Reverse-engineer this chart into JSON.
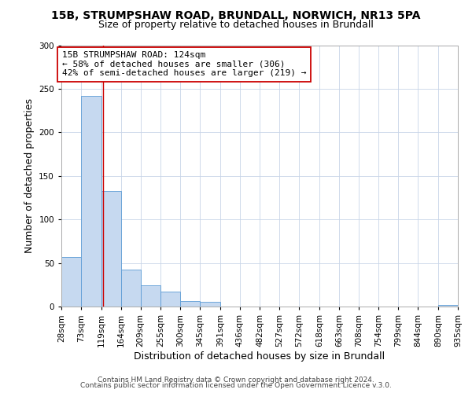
{
  "title_line1": "15B, STRUMPSHAW ROAD, BRUNDALL, NORWICH, NR13 5PA",
  "title_line2": "Size of property relative to detached houses in Brundall",
  "xlabel": "Distribution of detached houses by size in Brundall",
  "ylabel": "Number of detached properties",
  "bin_edges": [
    28,
    73,
    119,
    164,
    209,
    255,
    300,
    345,
    391,
    436,
    482,
    527,
    572,
    618,
    663,
    708,
    754,
    799,
    844,
    890,
    935
  ],
  "bar_heights": [
    57,
    242,
    133,
    42,
    24,
    17,
    6,
    5,
    0,
    0,
    0,
    0,
    0,
    0,
    0,
    0,
    0,
    0,
    0,
    2
  ],
  "bar_color": "#c6d9f0",
  "bar_edge_color": "#5b9bd5",
  "grid_color": "#c8d4e8",
  "vline_x": 124,
  "vline_color": "#cc0000",
  "ylim": [
    0,
    300
  ],
  "yticks": [
    0,
    50,
    100,
    150,
    200,
    250,
    300
  ],
  "annotation_text": "15B STRUMPSHAW ROAD: 124sqm\n← 58% of detached houses are smaller (306)\n42% of semi-detached houses are larger (219) →",
  "annotation_box_color": "#ffffff",
  "annotation_box_edge": "#cc0000",
  "footer_line1": "Contains HM Land Registry data © Crown copyright and database right 2024.",
  "footer_line2": "Contains public sector information licensed under the Open Government Licence v.3.0.",
  "title_fontsize": 10,
  "subtitle_fontsize": 9,
  "axis_label_fontsize": 9,
  "tick_fontsize": 7.5,
  "annotation_fontsize": 8,
  "footer_fontsize": 6.5
}
